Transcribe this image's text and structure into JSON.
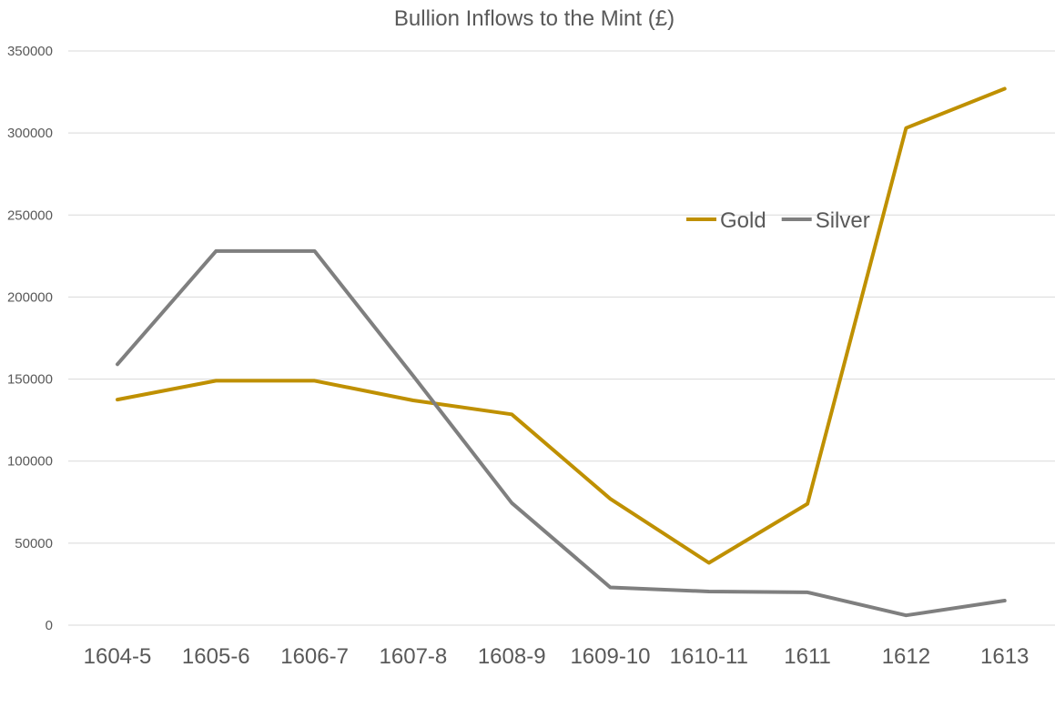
{
  "chart_data": {
    "type": "line",
    "title": "Bullion Inflows to the Mint (£)",
    "xlabel": "",
    "ylabel": "",
    "categories": [
      "1604-5",
      "1605-6",
      "1606-7",
      "1607-8",
      "1608-9",
      "1609-10",
      "1610-11",
      "1611",
      "1612",
      "1613"
    ],
    "ylim": [
      0,
      350000
    ],
    "yticks": [
      0,
      50000,
      100000,
      150000,
      200000,
      250000,
      300000,
      350000
    ],
    "grid": true,
    "legend_position": "top-right",
    "series": [
      {
        "name": "Gold",
        "color": "#bf9000",
        "values": [
          137500,
          149000,
          149000,
          137000,
          128500,
          77000,
          38000,
          74000,
          303000,
          327000
        ]
      },
      {
        "name": "Silver",
        "color": "#7f7f7f",
        "values": [
          159000,
          228000,
          228000,
          152000,
          74500,
          23000,
          20500,
          20000,
          6000,
          15000
        ]
      }
    ]
  }
}
